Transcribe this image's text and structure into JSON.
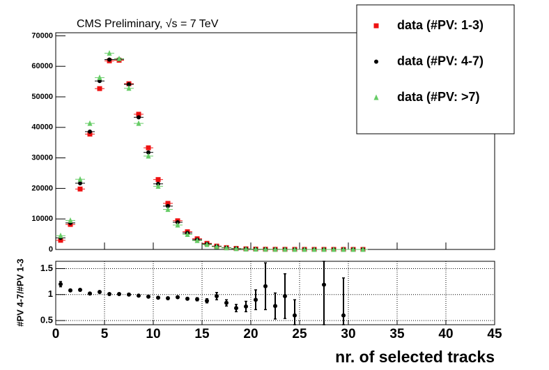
{
  "chart_data": [
    {
      "type": "scatter",
      "title": "CMS Preliminary, √s = 7 TeV",
      "legend": "top-right",
      "grid": false,
      "x": [
        0.5,
        1.5,
        2.5,
        3.5,
        4.5,
        5.5,
        6.5,
        7.5,
        8.5,
        9.5,
        10.5,
        11.5,
        12.5,
        13.5,
        14.5,
        15.5,
        16.5,
        17.5,
        18.5,
        19.5,
        20.5,
        21.5,
        22.5,
        23.5,
        24.5,
        25.5,
        26.5,
        27.5,
        28.5,
        29.5,
        30.5,
        31.5
      ],
      "xlim": [
        0,
        45
      ],
      "xticks": [
        0,
        5,
        10,
        15,
        20,
        25,
        30,
        35,
        40,
        45
      ],
      "ylim": [
        0,
        71000
      ],
      "yticks": [
        0,
        10000,
        20000,
        30000,
        40000,
        50000,
        60000,
        70000
      ],
      "series": [
        {
          "name": "data (#PV: 1-3)",
          "color": "#ee1111",
          "marker": "square",
          "values": [
            3000,
            8200,
            19800,
            37800,
            52700,
            61800,
            62000,
            54300,
            44300,
            33300,
            22900,
            15100,
            9400,
            5800,
            3500,
            2000,
            1100,
            600,
            350,
            200,
            120,
            70,
            40,
            25,
            15,
            10,
            6,
            4,
            3,
            2,
            1,
            1
          ]
        },
        {
          "name": "data (#PV: 4-7)",
          "color": "#000000",
          "marker": "circle",
          "values": [
            3800,
            8700,
            21700,
            38600,
            55200,
            62200,
            62300,
            54100,
            43300,
            31800,
            21500,
            14200,
            8900,
            5400,
            3200,
            1800,
            1000,
            550,
            300,
            170,
            100,
            60,
            35,
            20,
            12,
            8,
            5,
            3,
            2,
            1,
            1,
            1
          ]
        },
        {
          "name": "data (#PV: >7)",
          "color": "#66cc66",
          "marker": "triangle",
          "values": [
            4500,
            9500,
            23000,
            41300,
            56300,
            64300,
            62500,
            52800,
            41300,
            30600,
            20700,
            13100,
            8000,
            4900,
            2900,
            1600,
            900,
            500,
            270,
            150,
            90,
            50,
            30,
            18,
            10,
            6,
            4,
            2,
            1,
            1,
            1,
            1
          ]
        }
      ]
    },
    {
      "type": "errorbar",
      "xlabel": "nr. of selected tracks",
      "ylabel": "#PV 4-7/#PV 1-3",
      "grid": true,
      "color": "#000000",
      "x": [
        0.5,
        1.5,
        2.5,
        3.5,
        4.5,
        5.5,
        6.5,
        7.5,
        8.5,
        9.5,
        10.5,
        11.5,
        12.5,
        13.5,
        14.5,
        15.5,
        16.5,
        17.5,
        18.5,
        19.5,
        20.5,
        21.5,
        22.5,
        23.5,
        24.5,
        27.5,
        29.5
      ],
      "values": [
        1.2,
        1.08,
        1.09,
        1.02,
        1.05,
        1.01,
        1.01,
        1.0,
        0.98,
        0.96,
        0.94,
        0.93,
        0.95,
        0.92,
        0.91,
        0.88,
        0.97,
        0.84,
        0.74,
        0.77,
        0.9,
        1.16,
        0.78,
        0.97,
        0.6,
        1.19,
        0.6
      ],
      "errors": [
        0.05,
        0.02,
        0.02,
        0.02,
        0.02,
        0.01,
        0.01,
        0.01,
        0.01,
        0.01,
        0.01,
        0.02,
        0.02,
        0.02,
        0.03,
        0.04,
        0.07,
        0.06,
        0.07,
        0.1,
        0.19,
        0.45,
        0.25,
        0.43,
        0.3,
        0.9,
        0.72
      ],
      "xlim": [
        0,
        45
      ],
      "xticks": [
        0,
        5,
        10,
        15,
        20,
        25,
        30,
        35,
        40,
        45
      ],
      "ylim": [
        0.42,
        1.64
      ],
      "yticks": [
        0.5,
        1,
        1.5
      ]
    }
  ]
}
